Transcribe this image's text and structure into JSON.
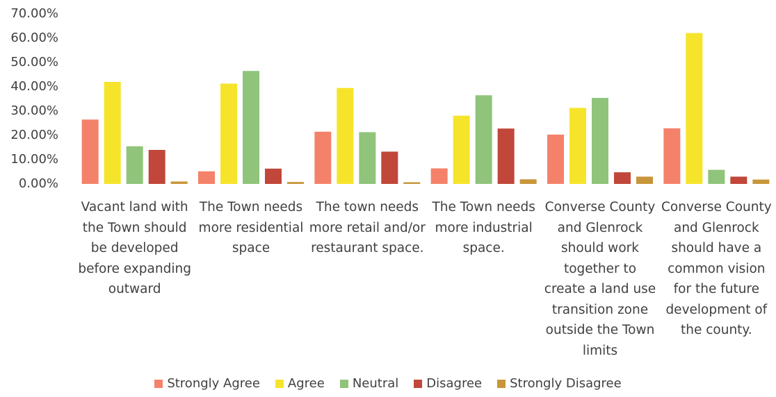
{
  "chart_data": {
    "type": "bar",
    "categories": [
      "Vacant land with the Town should be developed before expanding outward",
      "The Town needs more residential space",
      "The town needs more retail and/or restaurant space.",
      "The Town needs more industrial space.",
      "Converse County and Glenrock should work together to create a land use transition zone outside the Town limits",
      "Converse County and Glenrock should have a common vision for the future development of the county."
    ],
    "series": [
      {
        "name": "Strongly Agree",
        "color": "#f4826a",
        "values": [
          26.5,
          5.2,
          21.5,
          6.4,
          20.3,
          22.9
        ]
      },
      {
        "name": "Agree",
        "color": "#f5e42a",
        "values": [
          42.0,
          41.3,
          39.5,
          28.1,
          31.3,
          62.1
        ]
      },
      {
        "name": "Neutral",
        "color": "#8fc47a",
        "values": [
          15.5,
          46.5,
          21.3,
          36.5,
          35.4,
          5.8
        ]
      },
      {
        "name": "Disagree",
        "color": "#c0473a",
        "values": [
          14.0,
          6.3,
          13.3,
          22.8,
          4.8,
          3.0
        ]
      },
      {
        "name": "Strongly Disagree",
        "color": "#c8963a",
        "values": [
          1.0,
          0.8,
          0.7,
          1.9,
          3.0,
          1.8
        ]
      }
    ],
    "ylim": [
      0,
      70
    ],
    "yticks": [
      {
        "value": 0,
        "label": "0.00%"
      },
      {
        "value": 10,
        "label": "10.00%"
      },
      {
        "value": 20,
        "label": "20.00%"
      },
      {
        "value": 30,
        "label": "30.00%"
      },
      {
        "value": 40,
        "label": "40.00%"
      },
      {
        "value": 50,
        "label": "50.00%"
      },
      {
        "value": 60,
        "label": "60.00%"
      },
      {
        "value": 70,
        "label": "70.00%"
      }
    ],
    "grid": false,
    "legend": "bottom"
  }
}
